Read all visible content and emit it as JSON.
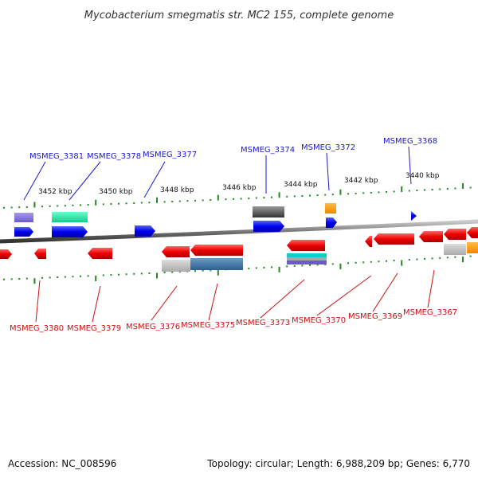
{
  "title": "Mycobacterium smegmatis str. MC2 155, complete genome",
  "accession": "Accession: NC_008596",
  "summary": "Topology: circular; Length: 6,988,209 bp; Genes: 6,770",
  "kbp_labels": [
    "3452 kbp",
    "3450 kbp",
    "3448 kbp",
    "3446 kbp",
    "3444 kbp",
    "3442 kbp",
    "3440 kbp"
  ],
  "top_genes": [
    "MSMEG_3381",
    "MSMEG_3378",
    "MSMEG_3377",
    "MSMEG_3374",
    "MSMEG_3372",
    "MSMEG_3368"
  ],
  "bottom_genes": [
    "MSMEG_3380",
    "MSMEG_3379",
    "MSMEG_3376",
    "MSMEG_3375",
    "MSMEG_3373",
    "MSMEG_3370",
    "MSMEG_3369",
    "MSMEG_3367"
  ],
  "colors": {
    "forward_label": "#1a1acc",
    "reverse_label": "#cc1111",
    "forward_gene": "#0000ee",
    "reverse_gene": "#ee0000",
    "tick": "#228822",
    "backbone": "#777777"
  }
}
